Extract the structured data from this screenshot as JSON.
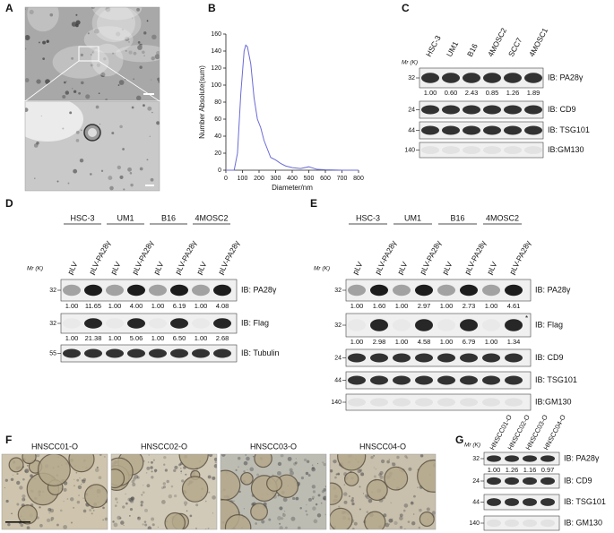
{
  "panel_labels": [
    "A",
    "B",
    "C",
    "D",
    "E",
    "F",
    "G"
  ],
  "chart_data": {
    "type": "line",
    "xlabel": "Diameter/nm",
    "ylabel": "Number Absolute(sum)",
    "x": [
      0,
      50,
      70,
      90,
      110,
      120,
      130,
      150,
      170,
      190,
      210,
      230,
      250,
      270,
      300,
      330,
      360,
      400,
      450,
      500,
      550,
      600,
      700,
      800
    ],
    "values": [
      0,
      0,
      20,
      90,
      140,
      147,
      145,
      125,
      85,
      60,
      50,
      35,
      25,
      15,
      12,
      8,
      5,
      3,
      2,
      4,
      1,
      0.5,
      0,
      0
    ],
    "color": "#6b6bd6",
    "xlim": [
      0,
      800
    ],
    "ylim": [
      0,
      160
    ],
    "xticks": [
      0,
      100,
      200,
      300,
      400,
      500,
      600,
      700,
      800
    ],
    "yticks": [
      0,
      20,
      40,
      60,
      80,
      100,
      120,
      140,
      160
    ]
  },
  "blot_c": {
    "mr_label": "Mr (K)",
    "lanes": [
      "HSC-3",
      "UM1",
      "B16",
      "4MOSC2",
      "SCC7",
      "4MOSC1"
    ],
    "rows": [
      {
        "marker": 32,
        "ib": "IB: PA28γ",
        "quant": [
          "1.00",
          "0.60",
          "2.43",
          "0.85",
          "1.26",
          "1.89"
        ]
      },
      {
        "marker": 24,
        "ib": "IB: CD9"
      },
      {
        "marker": 44,
        "ib": "IB: TSG101"
      },
      {
        "marker": 140,
        "ib": "IB:GM130"
      }
    ]
  },
  "blot_d": {
    "mr_label": "Mr (K)",
    "groups": [
      "HSC-3",
      "UM1",
      "B16",
      "4MOSC2"
    ],
    "lanes": [
      "pLV",
      "pLV-PA28γ",
      "pLV",
      "pLV-PA28γ",
      "pLV",
      "pLV-PA28γ",
      "pLV",
      "pLV-PA28γ"
    ],
    "rows": [
      {
        "marker": 32,
        "ib": "IB: PA28γ",
        "quant": [
          "1.00",
          "11.65",
          "1.00",
          "4.00",
          "1.00",
          "6.19",
          "1.00",
          "4.08"
        ]
      },
      {
        "marker": 32,
        "ib": "IB: Flag",
        "quant": [
          "1.00",
          "21.38",
          "1.00",
          "5.06",
          "1.00",
          "6.50",
          "1.00",
          "2.68"
        ]
      },
      {
        "marker": 55,
        "ib": "IB: Tubulin"
      }
    ]
  },
  "blot_e": {
    "mr_label": "Mr (K)",
    "groups": [
      "HSC-3",
      "UM1",
      "B16",
      "4MOSC2"
    ],
    "lanes": [
      "pLV",
      "pLV-PA28γ",
      "pLV",
      "pLV-PA28γ",
      "pLV",
      "pLV-PA28γ",
      "pLV",
      "pLV-PA28γ"
    ],
    "annotation": "*",
    "rows": [
      {
        "marker": 32,
        "ib": "IB: PA28γ",
        "quant": [
          "1.00",
          "1.60",
          "1.00",
          "2.97",
          "1.00",
          "2.73",
          "1.00",
          "4.61"
        ]
      },
      {
        "marker": 32,
        "ib": "IB: Flag",
        "quant": [
          "1.00",
          "2.98",
          "1.00",
          "4.58",
          "1.00",
          "6.79",
          "1.00",
          "1.34"
        ]
      },
      {
        "marker": 24,
        "ib": "IB: CD9"
      },
      {
        "marker": 44,
        "ib": "IB: TSG101"
      },
      {
        "marker": 140,
        "ib": "IB:GM130"
      }
    ]
  },
  "organoids_f": {
    "titles": [
      "HNSCC01-O",
      "HNSCC02-O",
      "HNSCC03-O",
      "HNSCC04-O"
    ]
  },
  "blot_g": {
    "mr_label": "Mr (K)",
    "lanes": [
      "HNSCC01-O",
      "HNSCC02-O",
      "HNSCC03-O",
      "HNSCC04-O"
    ],
    "rows": [
      {
        "marker": 32,
        "ib": "IB: PA28γ",
        "quant": [
          "1.00",
          "1.26",
          "1.16",
          "0.97"
        ]
      },
      {
        "marker": 24,
        "ib": "IB: CD9"
      },
      {
        "marker": 44,
        "ib": "IB: TSG101"
      },
      {
        "marker": 140,
        "ib": "IB: GM130"
      }
    ]
  }
}
